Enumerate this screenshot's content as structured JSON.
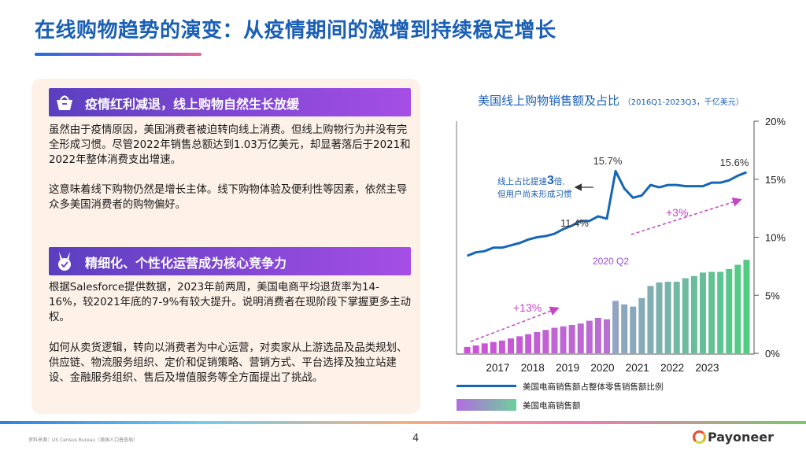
{
  "title": "在线购物趋势的演变：从疫情期间的激增到持续稳定增长",
  "sections": [
    {
      "heading": "疫情红利减退，线上购物自然生长放缓",
      "icon": "shopping-basket-icon",
      "paragraphs": [
        "虽然由于疫情原因，美国消费者被迫转向线上消费。但线上购物行为并没有完全形成习惯。尽管2022年销售总额达到1.03万亿美元，却显著落后于2021和2022年整体消费支出增速。",
        "这意味着线下购物仍然是增长主体。线下购物体验及便利性等因素，依然主导众多美国消费者的购物偏好。"
      ]
    },
    {
      "heading": "精细化、个性化运营成为核心竞争力",
      "icon": "medal-icon",
      "paragraphs": [
        "根据Salesforce提供数据，2023年前两周，美国电商平均退货率为14-16%，较2021年底的7-9%有较大提升。说明消费者在现阶段下掌握更多主动权。",
        "如何从卖货逻辑，转向以消费者为中心运营，对卖家从上游选品及品类规划、供应链、物流服务组织、定价和促销策略、营销方式、平台选择及独立站建设、金融服务组织、售后及增值服务等全方面提出了挑战。"
      ]
    }
  ],
  "chart_data": {
    "type": "bar",
    "title": "美国线上购物销售额及占比",
    "subtitle": "（2016Q1-2023Q3，千亿美元）",
    "x_tick_labels": [
      "2017",
      "2018",
      "2019",
      "2020",
      "2021",
      "2022",
      "2023"
    ],
    "y_right_ticks": [
      "20%",
      "15%",
      "10%",
      "5%",
      "0%"
    ],
    "y_right_lim": [
      0,
      20
    ],
    "series": [
      {
        "name": "美国电商销售额",
        "kind": "bar",
        "values": [
          0.45,
          0.55,
          0.7,
          0.8,
          0.9,
          1.05,
          1.2,
          1.35,
          1.5,
          1.65,
          1.8,
          1.9,
          2.0,
          2.1,
          2.3,
          2.5,
          2.4,
          3.7,
          3.45,
          3.3,
          3.9,
          4.75,
          5.0,
          5.05,
          5.05,
          5.3,
          5.45,
          5.7,
          5.75,
          5.75,
          5.95,
          6.25,
          6.6
        ]
      },
      {
        "name": "美国电商销售额占整体零售销售额比例",
        "kind": "line",
        "values": [
          8.4,
          8.7,
          8.8,
          9.1,
          9.1,
          9.3,
          9.5,
          9.8,
          10.0,
          10.1,
          10.3,
          10.7,
          11.0,
          11.4,
          11.4,
          11.8,
          11.6,
          15.7,
          14.2,
          13.4,
          13.6,
          14.5,
          14.3,
          14.5,
          14.5,
          14.4,
          14.4,
          14.4,
          14.7,
          14.7,
          14.9,
          15.3,
          15.6
        ]
      }
    ],
    "data_labels": [
      {
        "text": "11.4%"
      },
      {
        "text": "15.7%"
      },
      {
        "text": "15.6%"
      },
      {
        "text": "2020 Q2"
      }
    ],
    "annotations": {
      "growth_before": "+13%",
      "growth_after": "+3%",
      "callout_line1_a": "线上占比提速",
      "callout_line1_b": "3",
      "callout_line1_c": "倍,",
      "callout_line2": "但用户尚未形成习惯"
    },
    "grid": false,
    "legend_position": "bottom-left",
    "colors": {
      "line": "#1467b6",
      "bar_start": "#b06de0",
      "bar_end": "#6fcf9b",
      "accent": "#9b4fd6"
    }
  },
  "footer": {
    "source": "资料来源：US Census Bureau（美国人口普查局）",
    "page": "4",
    "logo_text": "Payoneer"
  }
}
